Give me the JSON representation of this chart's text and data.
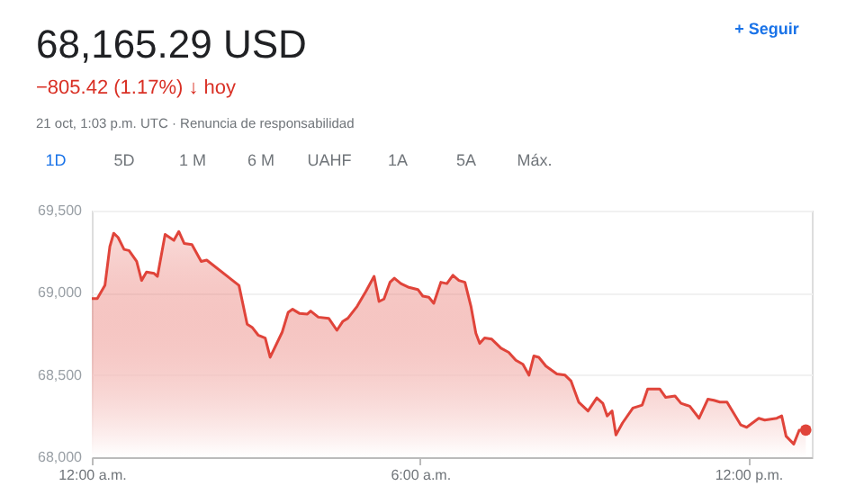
{
  "chart_data": {
    "type": "area",
    "title": "68,165.29 USD",
    "subtitle": "−805.42 (1.17%) ↓ hoy",
    "annotations": [
      "21 oct, 1:03 p.m. UTC · Renuncia de responsabilidad",
      "+ Seguir",
      "1D",
      "5D",
      "1 M",
      "6 M",
      "UAHF",
      "1A",
      "5A",
      "Máx."
    ],
    "xlim": [
      0,
      13.16
    ],
    "xticks": [
      {
        "value": 0,
        "label": "12:00 a.m."
      },
      {
        "value": 6,
        "label": "6:00 a.m."
      },
      {
        "value": 12,
        "label": "12:00 p.m."
      }
    ],
    "ylim": [
      68000,
      69500
    ],
    "yticks": [
      {
        "value": 68000,
        "label": "68,000"
      },
      {
        "value": 68500,
        "label": "68,500"
      },
      {
        "value": 69000,
        "label": "69,000"
      },
      {
        "value": 69500,
        "label": "69,500"
      }
    ],
    "grid": "y",
    "series": [
      {
        "color": "#e0443a",
        "x": [
          0,
          0.1,
          0.24,
          0.33,
          0.4,
          0.48,
          0.59,
          0.68,
          0.82,
          0.91,
          1.0,
          1.14,
          1.2,
          1.34,
          1.5,
          1.59,
          1.69,
          1.83,
          2.0,
          2.1,
          2.69,
          2.84,
          2.93,
          3.04,
          3.17,
          3.26,
          3.48,
          3.59,
          3.67,
          3.8,
          3.94,
          4.0,
          4.14,
          4.33,
          4.48,
          4.59,
          4.68,
          4.85,
          5.01,
          5.16,
          5.25,
          5.34,
          5.45,
          5.53,
          5.65,
          5.78,
          5.96,
          6.05,
          6.16,
          6.25,
          6.38,
          6.49,
          6.6,
          6.71,
          6.82,
          6.93,
          7.02,
          7.09,
          7.18,
          7.31,
          7.48,
          7.62,
          7.75,
          7.88,
          7.99,
          8.08,
          8.17,
          8.3,
          8.5,
          8.65,
          8.76,
          8.9,
          9.07,
          9.23,
          9.34,
          9.42,
          9.51,
          9.58,
          9.7,
          9.89,
          10.06,
          10.16,
          10.38,
          10.49,
          10.66,
          10.77,
          10.93,
          11.1,
          11.26,
          11.37,
          11.48,
          11.61,
          11.86,
          11.97,
          12.19,
          12.3,
          12.52,
          12.61,
          12.69,
          12.83,
          12.93,
          13.05
        ],
        "values": [
          68965,
          68965,
          69045,
          69282,
          69362,
          69337,
          69264,
          69257,
          69191,
          69075,
          69126,
          69118,
          69100,
          69355,
          69319,
          69373,
          69300,
          69293,
          69191,
          69199,
          69045,
          68809,
          68790,
          68743,
          68725,
          68608,
          68761,
          68882,
          68900,
          68874,
          68871,
          68889,
          68852,
          68845,
          68772,
          68827,
          68845,
          68918,
          69009,
          69100,
          68947,
          68962,
          69064,
          69089,
          69056,
          69035,
          69020,
          68980,
          68973,
          68936,
          69064,
          69056,
          69107,
          69075,
          69064,
          68918,
          68754,
          68692,
          68725,
          68718,
          68663,
          68638,
          68590,
          68565,
          68499,
          68616,
          68608,
          68554,
          68506,
          68499,
          68463,
          68335,
          68281,
          68361,
          68328,
          68251,
          68281,
          68135,
          68208,
          68299,
          68317,
          68415,
          68415,
          68364,
          68372,
          68328,
          68310,
          68237,
          68353,
          68346,
          68335,
          68335,
          68197,
          68182,
          68237,
          68226,
          68237,
          68251,
          68128,
          68080,
          68164,
          68165.29
        ]
      },
      {
        "type": "scatter",
        "color": "#e0443a",
        "x": [
          13.05
        ],
        "values": [
          68165.29
        ]
      }
    ]
  }
}
